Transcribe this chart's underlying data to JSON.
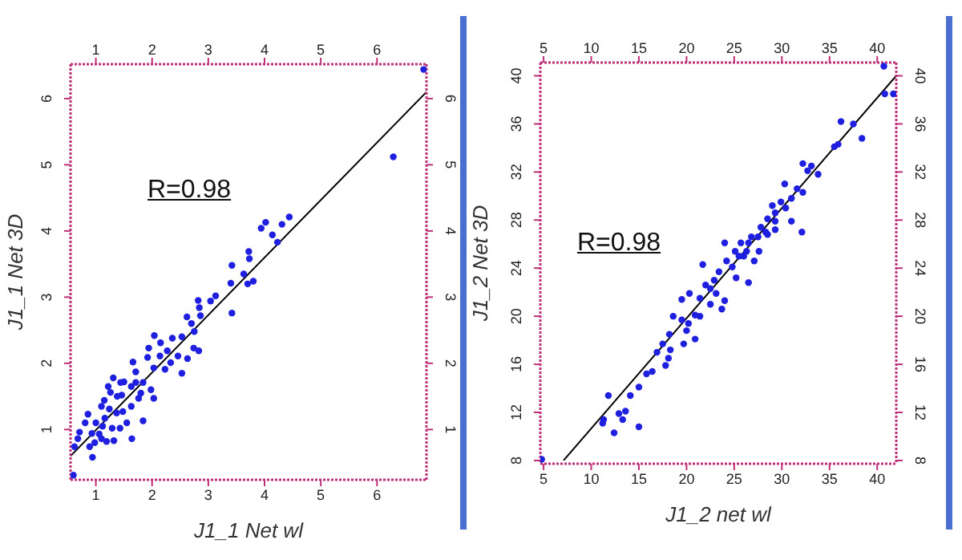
{
  "chart_data": [
    {
      "type": "scatter",
      "xlabel": "J1_1 Net wl",
      "ylabel": "J1_1 Net 3D",
      "annotations": [
        "R=0.98"
      ],
      "marker": "circle",
      "xlim": [
        0.55,
        6.88
      ],
      "xticks": [
        1,
        2,
        3,
        4,
        5,
        6
      ],
      "x2lim": [
        0.55,
        6.88
      ],
      "x2ticks": [
        1,
        2,
        3,
        4,
        5,
        6
      ],
      "ylim": [
        0.24,
        6.52
      ],
      "yticks": [
        1,
        2,
        3,
        4,
        5,
        6
      ],
      "y2lim": [
        0.24,
        6.52
      ],
      "y2ticks": [
        1,
        2,
        3,
        4,
        5,
        6
      ],
      "series": [
        {
          "type": "scatter",
          "color": "#1f1fe0",
          "x": [
            6.83,
            6.29,
            4.44,
            4.31,
            4.02,
            3.94,
            4.14,
            4.23,
            3.72,
            3.73,
            3.42,
            3.63,
            3.8,
            3.7,
            3.4,
            3.42,
            3.13,
            3.04,
            2.82,
            2.84,
            2.86,
            2.62,
            2.7,
            2.75,
            2.83,
            2.74,
            2.53,
            2.36,
            2.15,
            2.04,
            2.27,
            2.46,
            2.63,
            2.53,
            1.94,
            1.92,
            2.03,
            1.84,
            1.98,
            2.03,
            1.8,
            1.71,
            1.66,
            1.63,
            1.5,
            1.46,
            1.63,
            1.38,
            1.26,
            1.31,
            1.22,
            1.15,
            1.24,
            1.1,
            1.37,
            1.48,
            1.16,
            1.0,
            1.12,
            0.86,
            0.81,
            0.93,
            1.06,
            1.19,
            1.32,
            1.64,
            1.84,
            0.71,
            0.68,
            0.89,
            0.94,
            0.62,
            0.6,
            0.98,
            1.29,
            1.43,
            1.55,
            1.76,
            1.1,
            1.44,
            1.71,
            2.14,
            2.33,
            2.23
          ],
          "values": [
            6.44,
            5.12,
            4.21,
            4.1,
            4.13,
            4.04,
            3.94,
            3.83,
            3.69,
            3.58,
            3.48,
            3.35,
            3.24,
            3.2,
            3.21,
            2.76,
            3.02,
            2.94,
            2.95,
            2.84,
            2.72,
            2.7,
            2.6,
            2.48,
            2.19,
            2.23,
            2.4,
            2.38,
            2.31,
            2.42,
            2.19,
            2.11,
            2.07,
            1.85,
            2.23,
            2.09,
            1.93,
            1.71,
            1.6,
            1.47,
            1.55,
            1.87,
            2.02,
            1.65,
            1.72,
            1.52,
            1.35,
            1.5,
            1.56,
            1.78,
            1.65,
            1.44,
            1.31,
            1.35,
            1.25,
            1.27,
            1.17,
            1.1,
            1.05,
            1.23,
            1.1,
            0.94,
            0.93,
            0.82,
            0.83,
            0.86,
            1.13,
            0.96,
            0.86,
            0.74,
            0.58,
            0.74,
            0.31,
            0.8,
            1.02,
            1.02,
            1.1,
            1.47,
            0.86,
            1.71,
            1.71,
            2.11,
            2.01,
            1.91
          ]
        },
        {
          "type": "line",
          "color": "#000000",
          "marker": "none",
          "x": [
            0.55,
            6.88
          ],
          "values": [
            0.6,
            6.1
          ]
        }
      ]
    },
    {
      "type": "scatter",
      "xlabel": "J1_2 net wl",
      "ylabel": "J1_2 Net 3D",
      "annotations": [
        "R=0.98"
      ],
      "marker": "circle",
      "xlim": [
        4.66,
        42
      ],
      "xticks": [
        5,
        10,
        15,
        20,
        25,
        30,
        35,
        40
      ],
      "x2lim": [
        4.66,
        42
      ],
      "x2ticks": [
        5,
        10,
        15,
        20,
        25,
        30,
        35,
        40
      ],
      "ylim": [
        7.73,
        41.1
      ],
      "yticks": [
        8,
        12,
        16,
        20,
        24,
        28,
        32,
        36,
        40
      ],
      "y2lim": [
        7.73,
        41.1
      ],
      "y2ticks": [
        8,
        12,
        16,
        20,
        24,
        28,
        32,
        36,
        40
      ],
      "series": [
        {
          "type": "scatter",
          "color": "#1f1fe0",
          "x": [
            36.2,
            37.5,
            38.4,
            35.5,
            35.9,
            32.2,
            33.1,
            32.7,
            33.8,
            30.3,
            31.6,
            32.2,
            31.0,
            29.9,
            29.0,
            29.3,
            31.0,
            28.5,
            27.8,
            28.3,
            27.5,
            26.8,
            26.5,
            25.7,
            26.3,
            25.1,
            26.0,
            27.1,
            28.5,
            29.3,
            32.1,
            24.0,
            21.7,
            24.2,
            24.8,
            23.4,
            25.2,
            26.5,
            22.9,
            22.0,
            23.1,
            24.0,
            21.4,
            20.3,
            22.5,
            23.7,
            19.5,
            18.6,
            19.5,
            20.2,
            20.9,
            20.0,
            20.9,
            19.7,
            18.2,
            17.5,
            18.3,
            16.9,
            17.8,
            16.4,
            15.8,
            15.0,
            14.1,
            11.8,
            12.9,
            13.3,
            11.3,
            12.4,
            15.0,
            13.6,
            18.1,
            21.4,
            22.5,
            25.5,
            27.6,
            29.3,
            30.4,
            4.8,
            40.7,
            41.7,
            40.8,
            11.2
          ],
          "values": [
            36.2,
            36.0,
            34.8,
            34.1,
            34.3,
            32.7,
            32.5,
            32.1,
            31.8,
            31.0,
            30.6,
            30.3,
            29.8,
            29.5,
            29.2,
            28.6,
            27.9,
            28.1,
            27.4,
            27.0,
            26.6,
            26.6,
            26.1,
            26.1,
            25.4,
            25.4,
            25.0,
            24.6,
            26.8,
            27.2,
            27.0,
            26.1,
            24.3,
            24.6,
            24.1,
            23.7,
            23.2,
            22.8,
            23.0,
            22.6,
            21.9,
            21.3,
            21.5,
            21.9,
            21.0,
            20.6,
            21.4,
            20.0,
            19.7,
            19.4,
            20.1,
            18.8,
            18.1,
            17.7,
            18.5,
            17.7,
            17.2,
            17.0,
            15.9,
            15.4,
            15.2,
            14.1,
            13.4,
            13.4,
            11.9,
            11.4,
            11.4,
            10.3,
            10.8,
            12.1,
            16.5,
            20.0,
            22.3,
            25.0,
            25.4,
            27.9,
            29.0,
            8.1,
            40.8,
            38.5,
            38.5,
            11.1
          ]
        },
        {
          "type": "line",
          "color": "#000000",
          "marker": "none",
          "x": [
            7.1,
            42
          ],
          "values": [
            8.0,
            40.0
          ]
        }
      ]
    }
  ]
}
